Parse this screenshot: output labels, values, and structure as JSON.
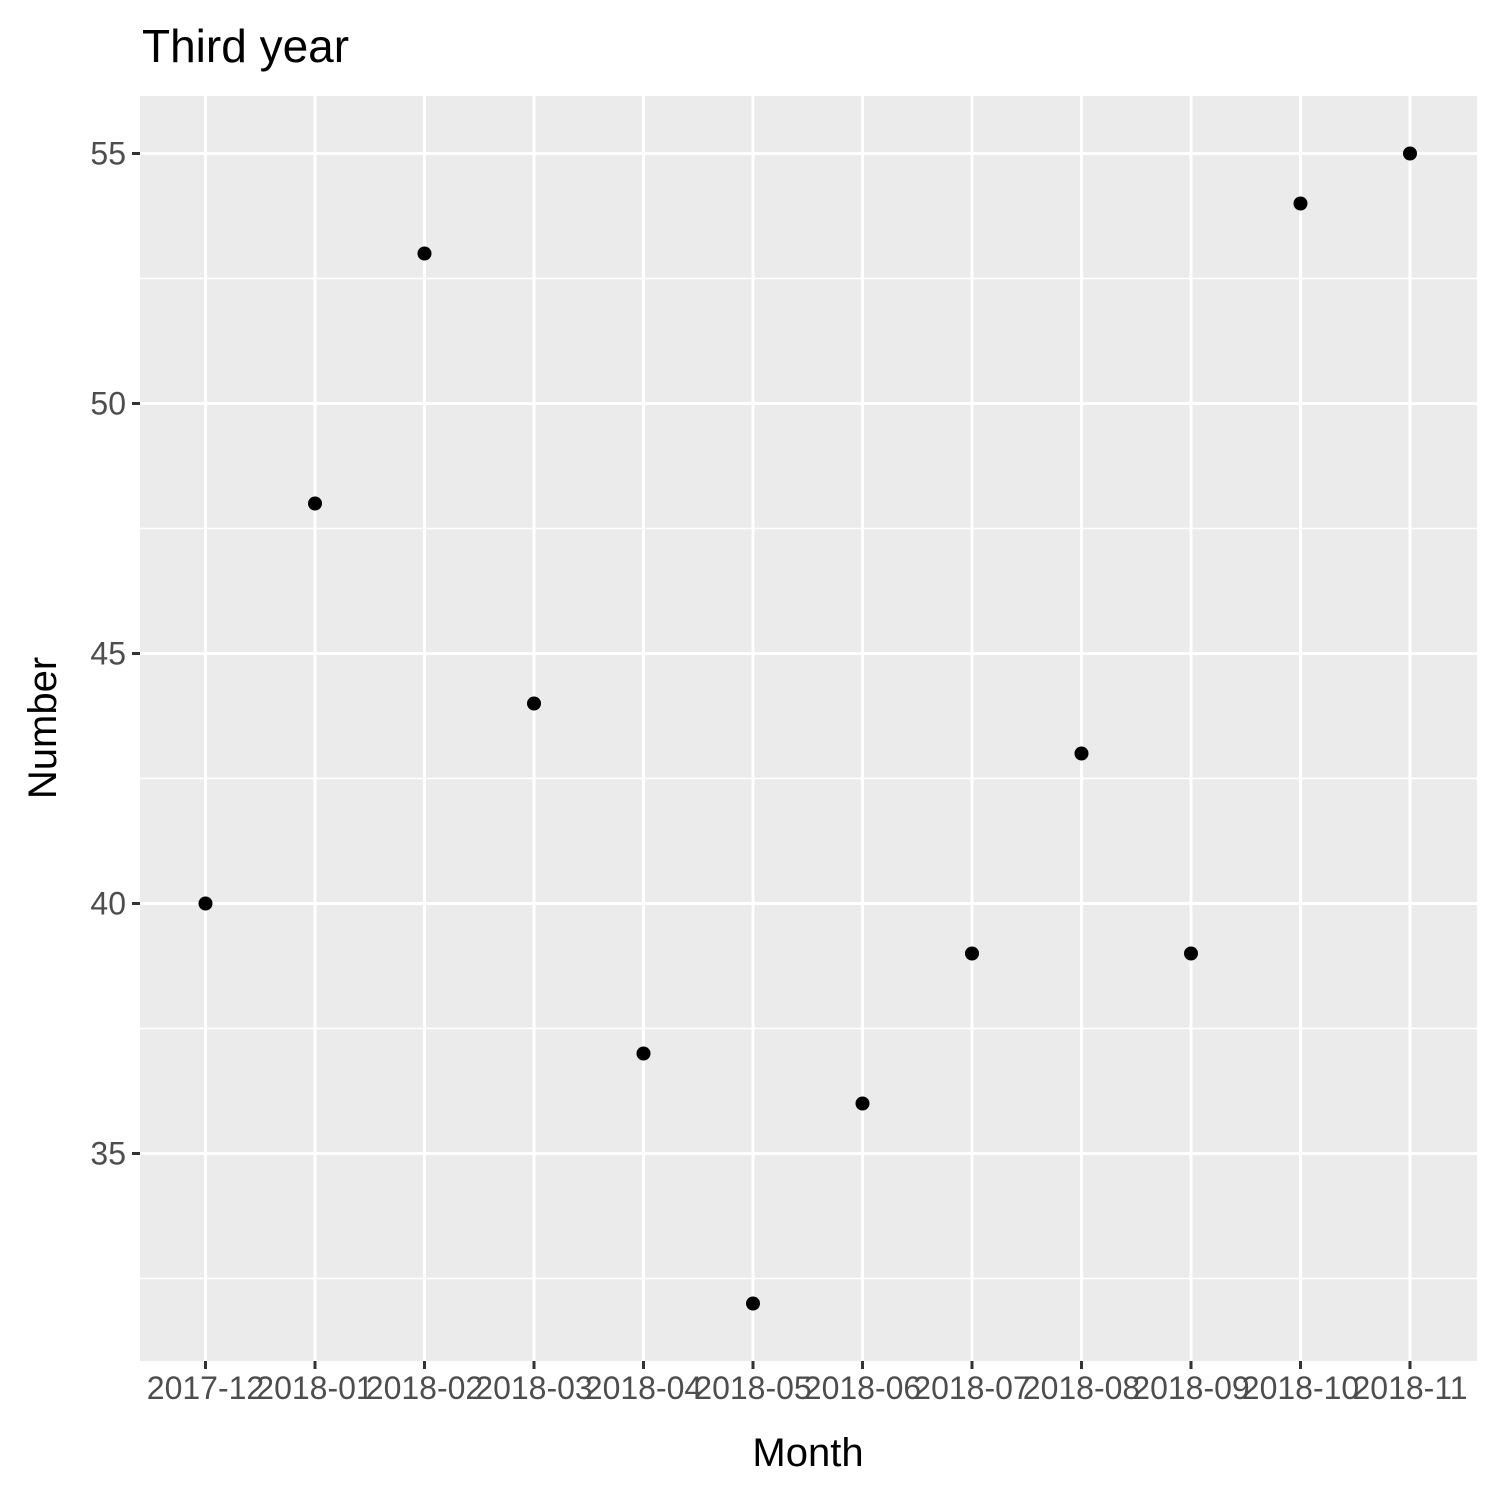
{
  "chart_data": {
    "type": "scatter",
    "title": "Third year",
    "xlabel": "Month",
    "ylabel": "Number",
    "x": [
      "2017-12",
      "2018-01",
      "2018-02",
      "2018-03",
      "2018-04",
      "2018-05",
      "2018-06",
      "2018-07",
      "2018-08",
      "2018-09",
      "2018-10",
      "2018-11"
    ],
    "values": [
      40,
      48,
      53,
      44,
      37,
      32,
      36,
      39,
      43,
      39,
      54,
      55
    ],
    "ylim": [
      30.85,
      56.15
    ],
    "yticks": [
      35,
      40,
      45,
      50,
      55
    ],
    "grid": true,
    "colors": {
      "panel": "#ebebeb",
      "grid": "#ffffff",
      "point": "#000000",
      "tick": "#333333",
      "tick_label": "#4d4d4d"
    }
  }
}
